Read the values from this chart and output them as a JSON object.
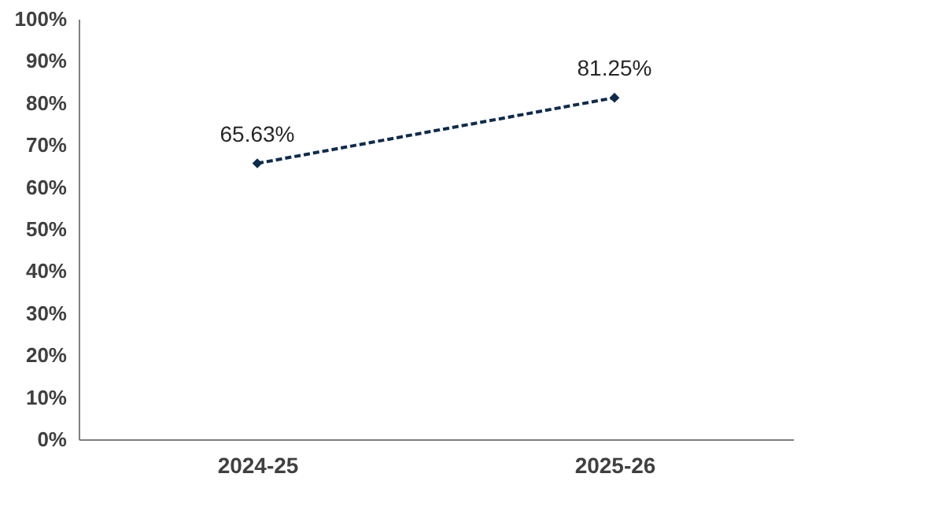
{
  "chart_data": {
    "type": "line",
    "categories": [
      "2024-25",
      "2025-26"
    ],
    "series": [
      {
        "color": "#0d2b4e",
        "values": [
          65.63,
          81.25
        ]
      }
    ],
    "value_labels": [
      "65.63%",
      "81.25%"
    ],
    "ylim": [
      0,
      100
    ],
    "yticks": [
      {
        "value": 0,
        "label": "0%"
      },
      {
        "value": 10,
        "label": "10%"
      },
      {
        "value": 20,
        "label": "20%"
      },
      {
        "value": 30,
        "label": "30%"
      },
      {
        "value": 40,
        "label": "40%"
      },
      {
        "value": 50,
        "label": "50%"
      },
      {
        "value": 60,
        "label": "60%"
      },
      {
        "value": 70,
        "label": "70%"
      },
      {
        "value": 80,
        "label": "80%"
      },
      {
        "value": 90,
        "label": "90%"
      },
      {
        "value": 100,
        "label": "100%"
      }
    ],
    "grid": false,
    "legend": false,
    "marker": "diamond",
    "line_style": "dashed"
  }
}
